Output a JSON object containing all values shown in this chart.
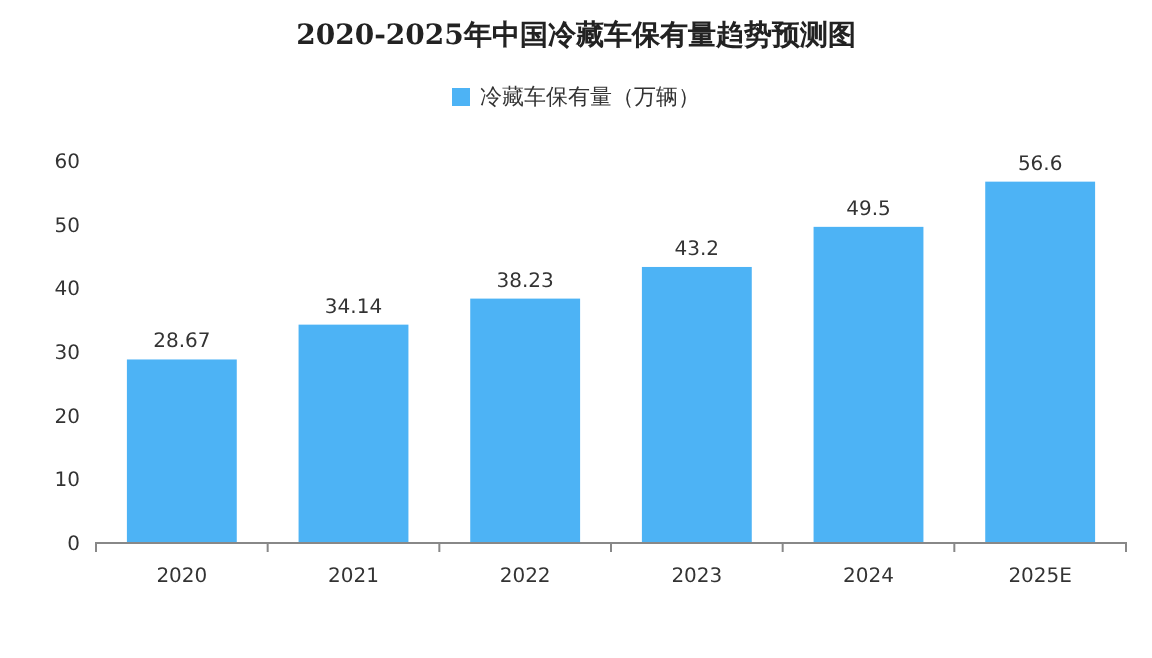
{
  "chart_data": {
    "type": "bar",
    "title": "2020-2025年中国冷藏车保有量趋势预测图",
    "categories": [
      "2020",
      "2021",
      "2022",
      "2023",
      "2024",
      "2025E"
    ],
    "series": [
      {
        "name": "冷藏车保有量（万辆）",
        "color": "#4db3f5",
        "values": [
          28.67,
          34.14,
          38.23,
          43.2,
          49.5,
          56.6
        ]
      }
    ],
    "ylim": [
      0,
      60
    ],
    "yticks": [
      0,
      10,
      20,
      30,
      40,
      50,
      60
    ],
    "data_labels": true,
    "legend": "top"
  }
}
